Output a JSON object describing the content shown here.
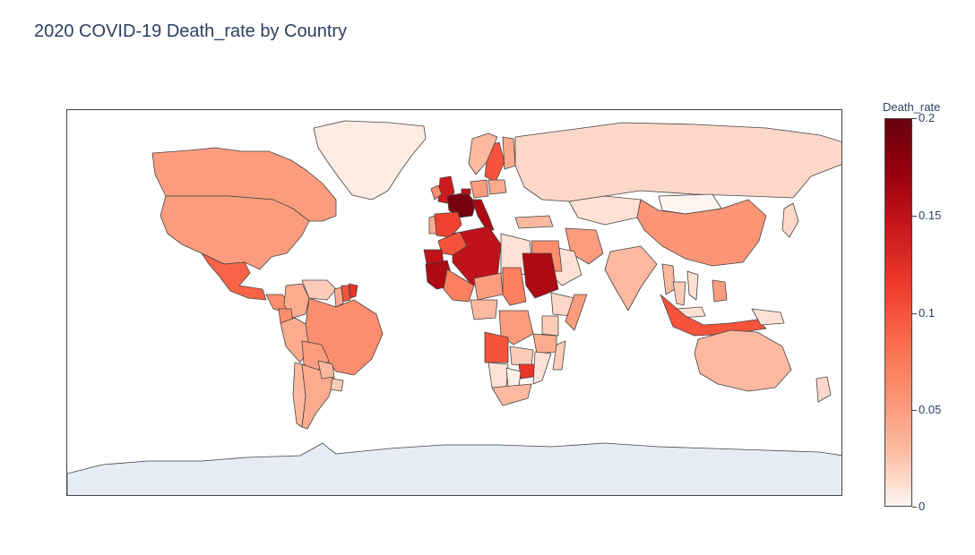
{
  "title": "2020 COVID-19 Death_rate by Country",
  "colorbar": {
    "title": "Death_rate",
    "ticks": [
      "0.2",
      "0.15",
      "0.1",
      "0.05",
      "0"
    ],
    "range": [
      0,
      0.2
    ],
    "colorscale": [
      "#fff5f0",
      "#fcbba1",
      "#fc9272",
      "#fb6a4a",
      "#ef3b2c",
      "#cb181d",
      "#99000d",
      "#67000d"
    ]
  },
  "colors": {
    "ocean": "#ffffff",
    "no_data_land": "#e5ecf6",
    "border": "#444444"
  },
  "chart_data": {
    "type": "choropleth",
    "variable": "Death_rate",
    "year": "2020",
    "zrange": [
      0,
      0.2
    ],
    "regions": [
      {
        "region": "Antarctica",
        "value": null
      },
      {
        "region": "Greenland",
        "value": 0.005
      },
      {
        "region": "Canada",
        "value": 0.05
      },
      {
        "region": "United States",
        "value": 0.05
      },
      {
        "region": "Mexico",
        "value": 0.09
      },
      {
        "region": "Guatemala",
        "value": 0.06
      },
      {
        "region": "Colombia",
        "value": 0.04
      },
      {
        "region": "Venezuela",
        "value": 0.02
      },
      {
        "region": "Guyana",
        "value": 0.04
      },
      {
        "region": "Suriname",
        "value": 0.1
      },
      {
        "region": "French Guiana",
        "value": 0.12
      },
      {
        "region": "Ecuador",
        "value": 0.06
      },
      {
        "region": "Peru",
        "value": 0.04
      },
      {
        "region": "Brazil",
        "value": 0.06
      },
      {
        "region": "Bolivia",
        "value": 0.05
      },
      {
        "region": "Chile",
        "value": 0.03
      },
      {
        "region": "Argentina",
        "value": 0.04
      },
      {
        "region": "Paraguay",
        "value": 0.03
      },
      {
        "region": "Uruguay",
        "value": 0.02
      },
      {
        "region": "United Kingdom",
        "value": 0.14
      },
      {
        "region": "Ireland",
        "value": 0.06
      },
      {
        "region": "France",
        "value": 0.19
      },
      {
        "region": "Spain",
        "value": 0.11
      },
      {
        "region": "Portugal",
        "value": 0.04
      },
      {
        "region": "Italy",
        "value": 0.16
      },
      {
        "region": "Belgium",
        "value": 0.15
      },
      {
        "region": "Sweden",
        "value": 0.1
      },
      {
        "region": "Norway",
        "value": 0.03
      },
      {
        "region": "Finland",
        "value": 0.04
      },
      {
        "region": "Germany",
        "value": 0.05
      },
      {
        "region": "Poland",
        "value": 0.04
      },
      {
        "region": "Russia",
        "value": 0.015
      },
      {
        "region": "Kazakhstan",
        "value": 0.01
      },
      {
        "region": "Mongolia",
        "value": 0.0
      },
      {
        "region": "China",
        "value": 0.055
      },
      {
        "region": "India",
        "value": 0.03
      },
      {
        "region": "Iran",
        "value": 0.05
      },
      {
        "region": "Turkey",
        "value": 0.03
      },
      {
        "region": "Saudi Arabia",
        "value": 0.01
      },
      {
        "region": "Egypt",
        "value": 0.06
      },
      {
        "region": "Libya",
        "value": 0.01
      },
      {
        "region": "Algeria",
        "value": 0.15
      },
      {
        "region": "Morocco",
        "value": 0.1
      },
      {
        "region": "Western Sahara",
        "value": 0.15
      },
      {
        "region": "Mauritania",
        "value": 0.16
      },
      {
        "region": "Mali",
        "value": 0.07
      },
      {
        "region": "Niger",
        "value": 0.05
      },
      {
        "region": "Chad",
        "value": 0.07
      },
      {
        "region": "Nigeria",
        "value": 0.03
      },
      {
        "region": "Sudan",
        "value": 0.16
      },
      {
        "region": "Ethiopia",
        "value": 0.015
      },
      {
        "region": "Somalia",
        "value": 0.05
      },
      {
        "region": "DR Congo",
        "value": 0.05
      },
      {
        "region": "Kenya",
        "value": 0.02
      },
      {
        "region": "Tanzania",
        "value": 0.04
      },
      {
        "region": "Angola",
        "value": 0.1
      },
      {
        "region": "Zambia",
        "value": 0.02
      },
      {
        "region": "Zimbabwe",
        "value": 0.12
      },
      {
        "region": "Mozambique",
        "value": 0.01
      },
      {
        "region": "Namibia",
        "value": 0.01
      },
      {
        "region": "Botswana",
        "value": 0.003
      },
      {
        "region": "South Africa",
        "value": 0.03
      },
      {
        "region": "Madagascar",
        "value": 0.02
      },
      {
        "region": "Myanmar",
        "value": 0.03
      },
      {
        "region": "Thailand",
        "value": 0.02
      },
      {
        "region": "Vietnam",
        "value": 0.01
      },
      {
        "region": "Philippines",
        "value": 0.05
      },
      {
        "region": "Malaysia",
        "value": 0.01
      },
      {
        "region": "Indonesia",
        "value": 0.1
      },
      {
        "region": "Papua New Guinea",
        "value": 0.01
      },
      {
        "region": "Australia",
        "value": 0.03
      },
      {
        "region": "New Zealand",
        "value": 0.015
      },
      {
        "region": "Japan",
        "value": 0.015
      }
    ]
  }
}
